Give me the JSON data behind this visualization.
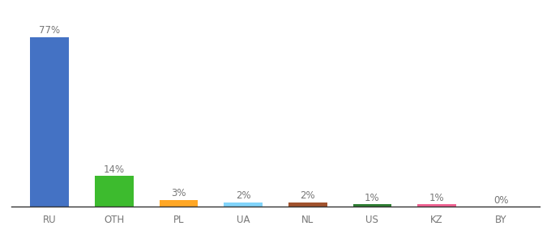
{
  "categories": [
    "RU",
    "OTH",
    "PL",
    "UA",
    "NL",
    "US",
    "KZ",
    "BY"
  ],
  "values": [
    77,
    14,
    3,
    2,
    2,
    1,
    1,
    0
  ],
  "bar_colors": [
    "#4472C4",
    "#3DBB2E",
    "#FFA726",
    "#81D4FA",
    "#A0522D",
    "#2E7D32",
    "#F06292",
    "#F06292"
  ],
  "ylim": [
    0,
    85
  ],
  "background_color": "#ffffff",
  "label_fontsize": 8.5,
  "tick_fontsize": 8.5,
  "label_color": "#777777",
  "tick_color": "#777777",
  "bar_width": 0.6,
  "bottom_spine_color": "#333333",
  "figsize": [
    6.8,
    3.0
  ],
  "dpi": 100
}
